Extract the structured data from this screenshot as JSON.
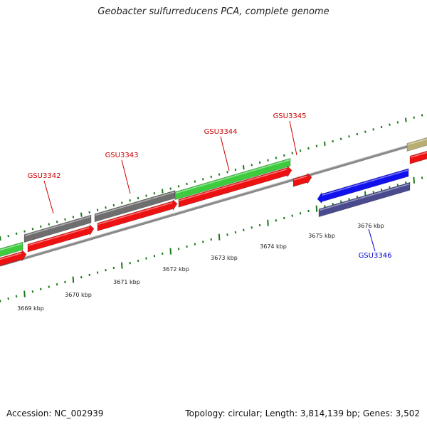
{
  "title": "Geobacter sulfurreducens PCA, complete genome",
  "footer": {
    "accession": "Accession: NC_002939",
    "stats": "Topology: circular; Length: 3,814,139 bp; Genes: 3,502"
  },
  "colors": {
    "backbone": "#8a8a8a",
    "tick": "#1a7a1a",
    "gene_label_red": "#cc0000",
    "gene_label_blue": "#0000cc",
    "green": "#3ecc3e",
    "gray": "#6e6e6e",
    "red": "#ee1111",
    "blue": "#1111ee",
    "navy": "#4a4a8e",
    "khaki": "#b8ad72"
  },
  "scale": {
    "labels": [
      "3669 kbp",
      "3670 kbp",
      "3671 kbp",
      "3672 kbp",
      "3673 kbp",
      "3674 kbp",
      "3675 kbp",
      "3676 kbp"
    ]
  },
  "genes": {
    "labels": [
      {
        "name": "GSU3342",
        "color": "red"
      },
      {
        "name": "GSU3343",
        "color": "red"
      },
      {
        "name": "GSU3344",
        "color": "red"
      },
      {
        "name": "GSU3345",
        "color": "red"
      },
      {
        "name": "GSU3346",
        "color": "blue"
      }
    ]
  }
}
